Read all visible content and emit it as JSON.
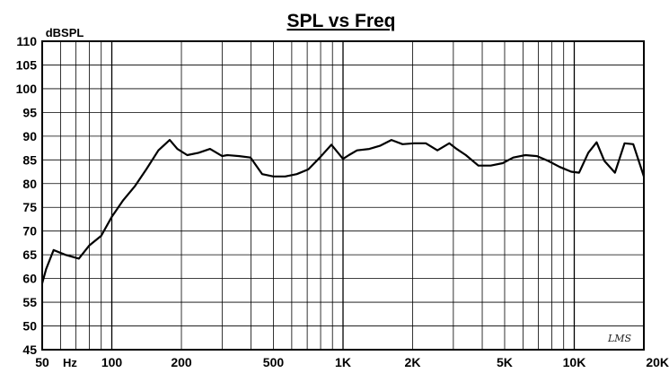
{
  "chart_data": {
    "type": "line",
    "title": "SPL vs Freq",
    "ylabel": "dBSPL",
    "x_scale": "log",
    "xlim": [
      50,
      20000
    ],
    "ylim": [
      45,
      110
    ],
    "grid": true,
    "x_ticks": [
      {
        "value": 50,
        "label": "50"
      },
      {
        "value": 100,
        "label": "100"
      },
      {
        "value": 200,
        "label": "200"
      },
      {
        "value": 500,
        "label": "500"
      },
      {
        "value": 1000,
        "label": "1K"
      },
      {
        "value": 2000,
        "label": "2K"
      },
      {
        "value": 5000,
        "label": "5K"
      },
      {
        "value": 10000,
        "label": "10K"
      },
      {
        "value": 20000,
        "label": "20K"
      }
    ],
    "x_unit_label": "Hz",
    "y_ticks": [
      45,
      50,
      55,
      60,
      65,
      70,
      75,
      80,
      85,
      90,
      95,
      100,
      105,
      110
    ],
    "watermark": "LMS",
    "series": [
      {
        "color": "#000000",
        "x": [
          50,
          52,
          56,
          63,
          72,
          80,
          90,
          100,
          112,
          126,
          141,
          159,
          178,
          192,
          212,
          237,
          266,
          300,
          316,
          356,
          398,
          447,
          500,
          562,
          631,
          708,
          794,
          891,
          1000,
          1060,
          1150,
          1300,
          1450,
          1620,
          1810,
          2030,
          2280,
          2560,
          2880,
          3100,
          3400,
          3850,
          4350,
          4900,
          5450,
          6150,
          6900,
          7700,
          8650,
          9700,
          10500,
          11500,
          12500,
          13500,
          15000,
          16500,
          18000,
          20000
        ],
        "y": [
          59,
          62,
          66,
          65,
          64.2,
          67,
          69,
          73,
          76.5,
          79.5,
          83,
          87,
          89.2,
          87.3,
          86,
          86.5,
          87.3,
          85.8,
          86,
          85.8,
          85.5,
          82,
          81.5,
          81.5,
          82,
          83,
          85.5,
          88.2,
          85.2,
          86,
          87,
          87.3,
          88,
          89.2,
          88.3,
          88.5,
          88.5,
          87,
          88.5,
          87.3,
          86,
          83.8,
          83.8,
          84.3,
          85.5,
          86,
          85.8,
          84.8,
          83.5,
          82.5,
          82.3,
          86.5,
          88.7,
          84.8,
          82.3,
          88.5,
          88.3,
          81.5
        ]
      }
    ]
  }
}
